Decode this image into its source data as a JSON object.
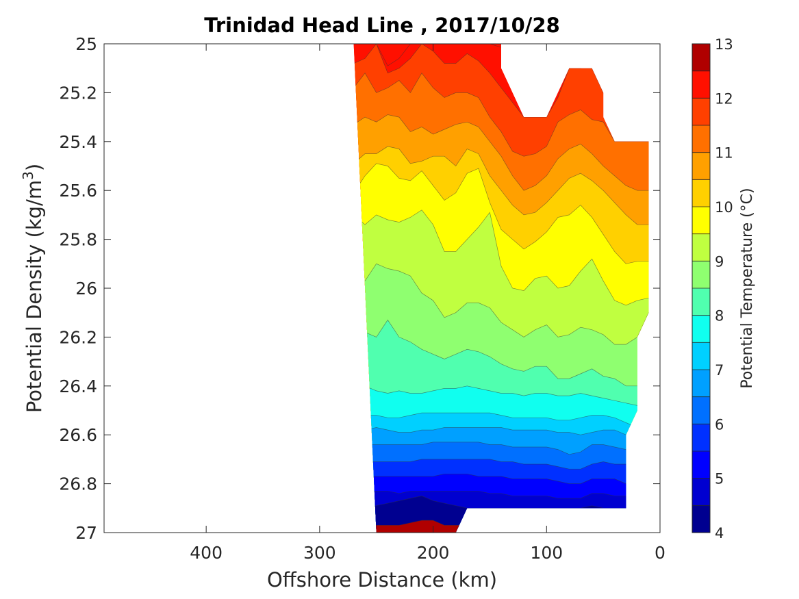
{
  "chart_data": {
    "type": "filled-contour",
    "title": "Trinidad Head Line , 2017/10/28",
    "xlabel": "Offshore Distance (km)",
    "ylabel": "Potential Density (kg/m",
    "ylabel_superscript": "3",
    "ylabel_close": ")",
    "x_reversed": true,
    "y_reversed": true,
    "xlim": [
      0,
      490
    ],
    "ylim": [
      25,
      27
    ],
    "xticks": [
      400,
      300,
      200,
      100,
      0
    ],
    "yticks": [
      25,
      25.2,
      25.4,
      25.6,
      25.8,
      26,
      26.2,
      26.4,
      26.6,
      26.8,
      27
    ],
    "ytick_labels": [
      "25",
      "25.2",
      "25.4",
      "25.6",
      "25.8",
      "26",
      "26.2",
      "26.4",
      "26.6",
      "26.8",
      "27"
    ],
    "grid": false,
    "colorbar": {
      "label": "Potential Temperature (°C)",
      "range": [
        4,
        13
      ],
      "ticks": [
        4,
        5,
        6,
        7,
        8,
        9,
        10,
        11,
        12,
        13
      ],
      "levels": [
        4,
        4.5,
        5,
        5.5,
        6,
        6.5,
        7,
        7.5,
        8,
        8.5,
        9,
        9.5,
        10,
        10.5,
        11,
        11.5,
        12,
        12.5,
        13
      ],
      "colors": [
        "#000090",
        "#0000d0",
        "#0000ff",
        "#0030ff",
        "#0070ff",
        "#00a0ff",
        "#00d0ff",
        "#10ffef",
        "#50ffaf",
        "#8fff70",
        "#c0ff40",
        "#ffff00",
        "#ffd000",
        "#ffa000",
        "#ff7000",
        "#ff4000",
        "#ff1000",
        "#b00000"
      ]
    },
    "x_stations": [
      270,
      260,
      250,
      240,
      230,
      220,
      210,
      200,
      190,
      180,
      170,
      160,
      150,
      140,
      130,
      120,
      110,
      100,
      90,
      80,
      70,
      60,
      50,
      40,
      30,
      20,
      10
    ],
    "isotherms": [
      {
        "temp": 12.5,
        "x": [
          250,
          240,
          230,
          220,
          210,
          200,
          190,
          180,
          170,
          160,
          150,
          80,
          70,
          60
        ],
        "y": [
          25.0,
          25.09,
          25.06,
          25.0,
          25.0,
          25.0,
          25.0,
          25.0,
          25.0,
          25.0,
          25.0,
          25.1,
          25.1,
          25.12
        ]
      },
      {
        "temp": 12,
        "x": [
          270,
          260,
          250,
          240,
          230,
          220,
          210,
          200,
          190,
          180,
          170,
          160,
          150,
          140,
          130,
          120,
          110,
          100,
          90,
          80,
          70,
          60,
          50
        ],
        "y": [
          25.08,
          25.06,
          25.0,
          25.12,
          25.1,
          25.06,
          25.0,
          25.03,
          25.08,
          25.08,
          25.04,
          25.07,
          25.12,
          25.18,
          25.24,
          25.3,
          25.3,
          25.3,
          25.22,
          25.1,
          25.1,
          25.1,
          25.2
        ]
      },
      {
        "temp": 11.5,
        "x": [
          270,
          260,
          250,
          240,
          230,
          220,
          210,
          200,
          190,
          180,
          170,
          160,
          150,
          140,
          130,
          120,
          110,
          100,
          90,
          80,
          70,
          60,
          50,
          40
        ],
        "y": [
          25.18,
          25.12,
          25.2,
          25.18,
          25.15,
          25.2,
          25.12,
          25.18,
          25.22,
          25.2,
          25.2,
          25.22,
          25.3,
          25.36,
          25.44,
          25.46,
          25.45,
          25.42,
          25.32,
          25.29,
          25.27,
          25.31,
          25.32,
          25.4
        ]
      },
      {
        "temp": 11,
        "x": [
          270,
          260,
          250,
          240,
          230,
          220,
          210,
          200,
          190,
          180,
          170,
          160,
          150,
          140,
          130,
          120,
          110,
          100,
          90,
          80,
          70,
          60,
          50,
          40,
          30,
          20,
          10
        ],
        "y": [
          25.33,
          25.3,
          25.32,
          25.29,
          25.3,
          25.36,
          25.34,
          25.37,
          25.35,
          25.33,
          25.32,
          25.34,
          25.4,
          25.46,
          25.54,
          25.6,
          25.58,
          25.54,
          25.47,
          25.43,
          25.41,
          25.45,
          25.5,
          25.54,
          25.58,
          25.6,
          25.6
        ]
      },
      {
        "temp": 10.5,
        "x": [
          270,
          260,
          250,
          240,
          230,
          220,
          210,
          200,
          190,
          180,
          170,
          160,
          150,
          140,
          130,
          120,
          110,
          100,
          90,
          80,
          70,
          60,
          50,
          40,
          30,
          20,
          10
        ],
        "y": [
          25.49,
          25.45,
          25.45,
          25.42,
          25.43,
          25.49,
          25.48,
          25.46,
          25.46,
          25.5,
          25.43,
          25.45,
          25.54,
          25.6,
          25.66,
          25.7,
          25.69,
          25.65,
          25.6,
          25.55,
          25.53,
          25.56,
          25.6,
          25.65,
          25.7,
          25.74,
          25.74
        ]
      },
      {
        "temp": 10,
        "x": [
          270,
          260,
          250,
          240,
          230,
          220,
          210,
          200,
          190,
          180,
          170,
          160,
          150,
          140,
          130,
          120,
          110,
          100,
          90,
          80,
          70,
          60,
          50,
          40,
          30,
          20,
          10
        ],
        "y": [
          25.61,
          25.54,
          25.49,
          25.5,
          25.55,
          25.56,
          25.52,
          25.58,
          25.64,
          25.61,
          25.53,
          25.51,
          25.65,
          25.76,
          25.8,
          25.84,
          25.81,
          25.77,
          25.71,
          25.7,
          25.66,
          25.71,
          25.78,
          25.85,
          25.9,
          25.89,
          25.89
        ]
      },
      {
        "temp": 9.5,
        "x": [
          270,
          260,
          250,
          240,
          230,
          220,
          210,
          200,
          190,
          180,
          170,
          160,
          150,
          140,
          130,
          120,
          110,
          100,
          90,
          80,
          70,
          60,
          50,
          40,
          30,
          20,
          10
        ],
        "y": [
          25.7,
          25.74,
          25.7,
          25.72,
          25.73,
          25.71,
          25.68,
          25.74,
          25.85,
          25.85,
          25.8,
          25.75,
          25.69,
          25.91,
          26.0,
          26.01,
          25.96,
          25.95,
          26.0,
          25.99,
          25.93,
          25.88,
          25.97,
          26.05,
          26.07,
          26.05,
          26.04
        ]
      },
      {
        "temp": 9,
        "x": [
          270,
          260,
          250,
          240,
          230,
          220,
          210,
          200,
          190,
          180,
          170,
          160,
          150,
          140,
          130,
          120,
          110,
          100,
          90,
          80,
          70,
          60,
          50,
          40,
          30,
          20,
          10
        ],
        "y": [
          25.95,
          25.97,
          25.9,
          25.92,
          25.93,
          25.95,
          26.02,
          26.05,
          26.12,
          26.1,
          26.06,
          26.06,
          26.08,
          26.14,
          26.17,
          26.2,
          26.17,
          26.15,
          26.2,
          26.19,
          26.16,
          26.17,
          26.19,
          26.23,
          26.23,
          26.2,
          26.1
        ]
      },
      {
        "temp": 8.5,
        "x": [
          270,
          260,
          250,
          240,
          230,
          220,
          210,
          200,
          190,
          180,
          170,
          160,
          150,
          140,
          130,
          120,
          110,
          100,
          90,
          80,
          70,
          60,
          50,
          40,
          30,
          20
        ],
        "y": [
          26.23,
          26.18,
          26.2,
          26.13,
          26.2,
          26.22,
          26.25,
          26.27,
          26.29,
          26.27,
          26.25,
          26.26,
          26.28,
          26.31,
          26.33,
          26.34,
          26.32,
          26.32,
          26.37,
          26.37,
          26.35,
          26.33,
          26.36,
          26.37,
          26.4,
          26.4
        ]
      },
      {
        "temp": 8,
        "x": [
          270,
          260,
          250,
          240,
          230,
          220,
          210,
          200,
          190,
          180,
          170,
          160,
          150,
          140,
          130,
          120,
          110,
          100,
          90,
          80,
          70,
          60,
          50,
          40,
          30,
          20
        ],
        "y": [
          26.41,
          26.4,
          26.42,
          26.43,
          26.42,
          26.43,
          26.43,
          26.42,
          26.41,
          26.41,
          26.4,
          26.41,
          26.42,
          26.43,
          26.43,
          26.44,
          26.43,
          26.43,
          26.44,
          26.44,
          26.43,
          26.44,
          26.45,
          26.46,
          26.47,
          26.48
        ]
      },
      {
        "temp": 7.5,
        "x": [
          270,
          260,
          250,
          240,
          230,
          220,
          210,
          200,
          190,
          180,
          170,
          160,
          150,
          140,
          130,
          120,
          110,
          100,
          90,
          80,
          70,
          60,
          50,
          40,
          30,
          20
        ],
        "y": [
          26.52,
          26.52,
          26.52,
          26.53,
          26.53,
          26.52,
          26.51,
          26.51,
          26.51,
          26.51,
          26.51,
          26.51,
          26.51,
          26.52,
          26.53,
          26.53,
          26.53,
          26.53,
          26.54,
          26.54,
          26.53,
          26.52,
          26.52,
          26.53,
          26.55,
          26.57
        ]
      },
      {
        "temp": 7,
        "x": [
          270,
          260,
          250,
          240,
          230,
          220,
          210,
          200,
          190,
          180,
          170,
          160,
          150,
          140,
          130,
          120,
          110,
          100,
          90,
          80,
          70,
          60,
          50,
          40,
          30
        ],
        "y": [
          26.58,
          26.58,
          26.57,
          26.58,
          26.59,
          26.59,
          26.58,
          26.58,
          26.57,
          26.57,
          26.57,
          26.57,
          26.57,
          26.57,
          26.58,
          26.58,
          26.58,
          26.58,
          26.59,
          26.59,
          26.6,
          26.59,
          26.58,
          26.58,
          26.6
        ]
      },
      {
        "temp": 6.5,
        "x": [
          270,
          260,
          250,
          240,
          230,
          220,
          210,
          200,
          190,
          180,
          170,
          160,
          150,
          140,
          130,
          120,
          110,
          100,
          90,
          80,
          70,
          60,
          50,
          40,
          30
        ],
        "y": [
          26.64,
          26.64,
          26.64,
          26.64,
          26.64,
          26.64,
          26.64,
          26.63,
          26.63,
          26.63,
          26.63,
          26.63,
          26.64,
          26.64,
          26.65,
          26.65,
          26.65,
          26.65,
          26.66,
          26.68,
          26.67,
          26.64,
          26.64,
          26.65,
          26.66
        ]
      },
      {
        "temp": 6,
        "x": [
          270,
          260,
          250,
          240,
          230,
          220,
          210,
          200,
          190,
          180,
          170,
          160,
          150,
          140,
          130,
          120,
          110,
          100,
          90,
          80,
          70,
          60,
          50,
          40,
          30
        ],
        "y": [
          26.71,
          26.71,
          26.71,
          26.71,
          26.71,
          26.71,
          26.7,
          26.7,
          26.7,
          26.7,
          26.7,
          26.7,
          26.7,
          26.71,
          26.71,
          26.72,
          26.72,
          26.72,
          26.73,
          26.74,
          26.74,
          26.72,
          26.71,
          26.72,
          26.72
        ]
      },
      {
        "temp": 5.5,
        "x": [
          270,
          260,
          250,
          240,
          230,
          220,
          210,
          200,
          190,
          180,
          170,
          160,
          150,
          140,
          130,
          120,
          110,
          100,
          90,
          80,
          70,
          60,
          50,
          40,
          30
        ],
        "y": [
          26.77,
          26.77,
          26.77,
          26.77,
          26.77,
          26.77,
          26.77,
          26.77,
          26.76,
          26.76,
          26.76,
          26.77,
          26.77,
          26.77,
          26.78,
          26.78,
          26.78,
          26.78,
          26.79,
          26.8,
          26.8,
          26.78,
          26.78,
          26.78,
          26.8
        ]
      },
      {
        "temp": 5,
        "x": [
          270,
          260,
          250,
          240,
          230,
          220,
          210,
          200,
          190,
          180,
          170,
          160,
          150,
          140,
          130,
          120,
          110,
          100,
          90,
          80,
          70,
          60,
          50,
          40,
          30
        ],
        "y": [
          26.8,
          26.84,
          26.83,
          26.83,
          26.84,
          26.83,
          26.83,
          26.83,
          26.83,
          26.83,
          26.83,
          26.83,
          26.84,
          26.84,
          26.85,
          26.85,
          26.85,
          26.85,
          26.86,
          26.86,
          26.86,
          26.84,
          26.84,
          26.85,
          26.85
        ]
      },
      {
        "temp": 4.5,
        "x": [
          270,
          260,
          250,
          240,
          230,
          220,
          210,
          200,
          190,
          180,
          170,
          160,
          150,
          140,
          130,
          120,
          110,
          100,
          90,
          80,
          70,
          60,
          50,
          40,
          30
        ],
        "y": [
          26.88,
          26.9,
          26.89,
          26.88,
          26.87,
          26.86,
          26.85,
          26.87,
          26.88,
          26.89,
          26.9,
          26.9,
          26.9,
          26.9,
          26.9,
          26.9,
          26.9,
          26.9,
          26.9,
          26.9,
          26.9,
          26.89,
          26.9,
          26.9,
          26.9
        ]
      },
      {
        "temp": 4,
        "x": [
          260,
          250,
          240,
          230,
          220,
          210,
          200,
          190,
          180
        ],
        "y": [
          26.97,
          26.97,
          26.97,
          26.97,
          26.96,
          26.95,
          26.95,
          26.97,
          26.97
        ]
      }
    ],
    "data_region": {
      "x": [
        270,
        270,
        140,
        140,
        120,
        100,
        90,
        80,
        60,
        50,
        50,
        40,
        10,
        10,
        20,
        20,
        30,
        30,
        170,
        180,
        250
      ],
      "y": [
        25.0,
        25.0,
        25.0,
        25.1,
        25.3,
        25.3,
        25.2,
        25.1,
        25.1,
        25.2,
        25.3,
        25.4,
        25.4,
        26.1,
        26.2,
        26.5,
        26.6,
        26.9,
        26.9,
        27.0,
        27.0
      ]
    }
  }
}
